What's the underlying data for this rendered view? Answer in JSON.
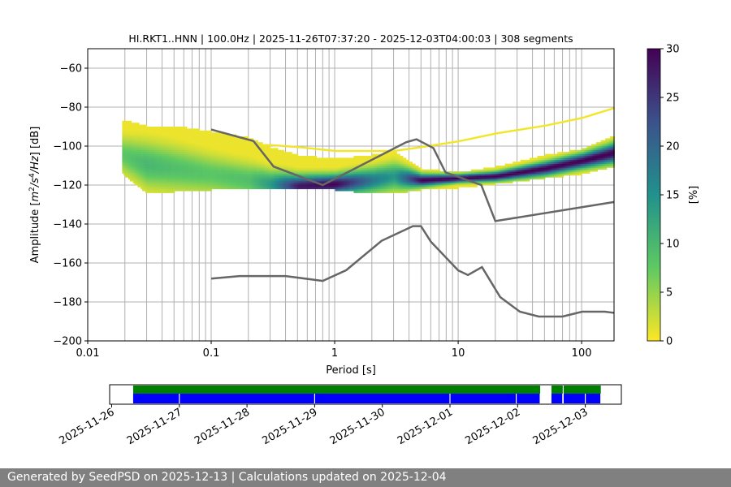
{
  "chart_data": {
    "type": "heatmap",
    "title": "HI.RKT1..HNN | 100.0Hz | 2025-11-26T07:37:20 - 2025-12-03T04:00:03 | 308 segments",
    "xlabel": "Period [s]",
    "ylabel": "Amplitude [m2/s4/Hz] [dB]",
    "x_scale": "log",
    "xlim": [
      0.01,
      183
    ],
    "ylim": [
      -200,
      -50
    ],
    "x_ticks": [
      {
        "v": 0.01,
        "label": "0.01"
      },
      {
        "v": 0.1,
        "label": "0.1"
      },
      {
        "v": 1,
        "label": "1"
      },
      {
        "v": 10,
        "label": "10"
      },
      {
        "v": 100,
        "label": "100"
      }
    ],
    "y_ticks": [
      -60,
      -80,
      -100,
      -120,
      -140,
      -160,
      -180,
      -200
    ],
    "grid": true,
    "colorbar": {
      "label": "[%]",
      "range": [
        0,
        30
      ],
      "ticks": [
        0,
        5,
        10,
        15,
        20,
        25,
        30
      ],
      "colormap": "viridis_r"
    },
    "density_columns": [
      {
        "period": 0.019,
        "lo": -114,
        "hi": -88,
        "mode": -105,
        "peak": 8,
        "sparse": null
      },
      {
        "period": 0.03,
        "lo": -124,
        "hi": -91,
        "mode": -110,
        "peak": 10,
        "sparse": null
      },
      {
        "period": 0.05,
        "lo": -123,
        "hi": -91,
        "mode": -112,
        "peak": 9,
        "sparse": null
      },
      {
        "period": 0.1,
        "lo": -122,
        "hi": -94,
        "mode": -115,
        "peak": 8,
        "sparse": null
      },
      {
        "period": 0.2,
        "lo": -122,
        "hi": -97,
        "mode": -118,
        "peak": 9,
        "sparse": null
      },
      {
        "period": 0.3,
        "lo": -122,
        "hi": -102,
        "mode": -120,
        "peak": 14,
        "sparse": -100
      },
      {
        "period": 0.5,
        "lo": -122,
        "hi": -106,
        "mode": -121,
        "peak": 28,
        "sparse": -101
      },
      {
        "period": 1,
        "lo": -122,
        "hi": -108,
        "mode": -120,
        "peak": 30,
        "sparse": -103
      },
      {
        "period": 2,
        "lo": -124,
        "hi": -106,
        "mode": -118,
        "peak": 18,
        "sparse": -103
      },
      {
        "period": 3,
        "lo": -124,
        "hi": -104,
        "mode": -116,
        "peak": 14,
        "sparse": -103
      },
      {
        "period": 5,
        "lo": -122,
        "hi": -113,
        "mode": -118,
        "peak": 30,
        "sparse": -101
      },
      {
        "period": 10,
        "lo": -121,
        "hi": -115,
        "mode": -117,
        "peak": 30,
        "sparse": -98
      },
      {
        "period": 20,
        "lo": -119,
        "hi": -112,
        "mode": -116,
        "peak": 30,
        "sparse": -94
      },
      {
        "period": 50,
        "lo": -116,
        "hi": -106,
        "mode": -112,
        "peak": 30,
        "sparse": -90
      },
      {
        "period": 100,
        "lo": -114,
        "hi": -103,
        "mode": -108,
        "peak": 30,
        "sparse": -86
      },
      {
        "period": 180,
        "lo": -110,
        "hi": -96,
        "mode": -104,
        "peak": 30,
        "sparse": -81
      }
    ],
    "nhnm": [
      [
        0.1,
        -91.5
      ],
      [
        0.22,
        -97.4
      ],
      [
        0.32,
        -110.5
      ],
      [
        0.8,
        -120
      ],
      [
        3.8,
        -98
      ],
      [
        4.6,
        -96.5
      ],
      [
        6.3,
        -101
      ],
      [
        7.9,
        -113.5
      ],
      [
        15.4,
        -120
      ],
      [
        20,
        -138.5
      ],
      [
        183,
        -128.7
      ]
    ],
    "nlnm": [
      [
        0.1,
        -168
      ],
      [
        0.17,
        -166.7
      ],
      [
        0.4,
        -166.7
      ],
      [
        0.8,
        -169.2
      ],
      [
        1.24,
        -163.7
      ],
      [
        2.4,
        -148.6
      ],
      [
        4.3,
        -141.1
      ],
      [
        5,
        -141.1
      ],
      [
        6,
        -149
      ],
      [
        10,
        -163.8
      ],
      [
        12,
        -166.2
      ],
      [
        15.6,
        -162.1
      ],
      [
        21.9,
        -177.5
      ],
      [
        31.6,
        -185
      ],
      [
        45,
        -187.5
      ],
      [
        70,
        -187.5
      ],
      [
        101,
        -185
      ],
      [
        154,
        -185
      ],
      [
        183,
        -185.6
      ]
    ],
    "timeline": {
      "xlim": [
        "2025-11-26T00:00",
        "2025-12-03T07:30"
      ],
      "ticks": [
        "2025-11-26",
        "2025-11-27",
        "2025-11-28",
        "2025-11-29",
        "2025-11-30",
        "2025-12-01",
        "2025-12-02",
        "2025-12-03"
      ],
      "green_segments": [
        [
          "2025-11-26T07:37",
          "2025-12-02T08:00"
        ],
        [
          "2025-12-02T12:00",
          "2025-12-02T16:00"
        ],
        [
          "2025-12-02T16:20",
          "2025-12-03T05:30"
        ]
      ],
      "blue_segments": [
        [
          "2025-11-26T07:37",
          "2025-11-26T23:50"
        ],
        [
          "2025-11-27T00:10",
          "2025-11-28T23:50"
        ],
        [
          "2025-11-29T00:10",
          "2025-11-30T23:50"
        ],
        [
          "2025-12-01T00:10",
          "2025-12-01T23:20"
        ],
        [
          "2025-12-01T23:40",
          "2025-12-02T07:50"
        ],
        [
          "2025-12-02T12:00",
          "2025-12-02T15:50"
        ],
        [
          "2025-12-02T16:20",
          "2025-12-02T23:50"
        ],
        [
          "2025-12-03T00:10",
          "2025-12-03T05:20"
        ]
      ],
      "colors": {
        "green": "#008000",
        "blue": "#0000ff"
      }
    }
  },
  "footer": {
    "text": "Generated by SeedPSD on 2025-12-13 | Calculations updated on 2025-12-04"
  }
}
